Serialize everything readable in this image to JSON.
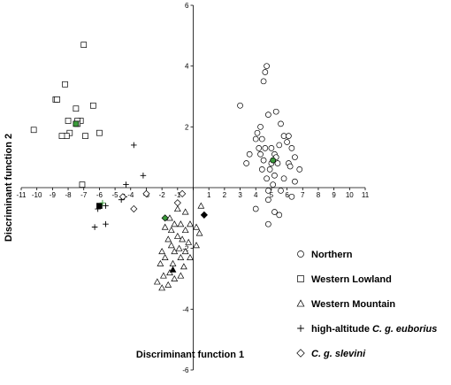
{
  "chart_data": {
    "type": "scatter",
    "xlabel": "Discriminant function 1",
    "ylabel": "Discriminant function 2",
    "xlim": [
      -11,
      11
    ],
    "ylim": [
      -6,
      6
    ],
    "x_ticks": [
      -11,
      -10,
      -9,
      -8,
      -7,
      -6,
      -5,
      -4,
      -3,
      -2,
      -1,
      0,
      1,
      2,
      3,
      4,
      5,
      6,
      7,
      8,
      9,
      10,
      11
    ],
    "y_ticks": [
      -6,
      -4,
      -2,
      2,
      4,
      6
    ],
    "grid": false,
    "legend_position": "bottom-right",
    "legend": [
      {
        "marker": "circle",
        "parts": [
          {
            "text": "Northern",
            "italic": false
          }
        ]
      },
      {
        "marker": "square",
        "parts": [
          {
            "text": "Western Lowland",
            "italic": false
          }
        ]
      },
      {
        "marker": "triangle",
        "parts": [
          {
            "text": "Western Mountain",
            "italic": false
          }
        ]
      },
      {
        "marker": "plus",
        "parts": [
          {
            "text": "high-altitude ",
            "italic": false
          },
          {
            "text": "C. g. euborius",
            "italic": true
          }
        ]
      },
      {
        "marker": "diamond",
        "parts": [
          {
            "text": "C. g. slevini",
            "italic": true
          }
        ]
      }
    ],
    "colors": {
      "open_marker": "#ffffff",
      "stroke": "#000000",
      "centroid": "#3a9a3a",
      "filled": "#000000"
    },
    "series": [
      {
        "marker": "circle",
        "points": [
          [
            4.7,
            4.0
          ],
          [
            4.6,
            3.8
          ],
          [
            4.5,
            3.5
          ],
          [
            3.0,
            2.7
          ],
          [
            4.8,
            2.4
          ],
          [
            5.3,
            2.5
          ],
          [
            4.3,
            2.0
          ],
          [
            5.6,
            2.1
          ],
          [
            4.1,
            1.8
          ],
          [
            4.0,
            1.6
          ],
          [
            4.4,
            1.6
          ],
          [
            5.8,
            1.7
          ],
          [
            6.1,
            1.7
          ],
          [
            6.0,
            1.5
          ],
          [
            4.6,
            1.3
          ],
          [
            4.2,
            1.3
          ],
          [
            5.0,
            1.3
          ],
          [
            5.5,
            1.4
          ],
          [
            6.3,
            1.3
          ],
          [
            3.6,
            1.1
          ],
          [
            4.3,
            1.1
          ],
          [
            5.2,
            1.1
          ],
          [
            5.3,
            1.0
          ],
          [
            4.5,
            0.9
          ],
          [
            6.5,
            1.0
          ],
          [
            3.4,
            0.8
          ],
          [
            5.0,
            0.8
          ],
          [
            5.4,
            0.8
          ],
          [
            6.1,
            0.8
          ],
          [
            4.4,
            0.6
          ],
          [
            4.9,
            0.6
          ],
          [
            6.2,
            0.7
          ],
          [
            6.8,
            0.6
          ],
          [
            4.7,
            0.3
          ],
          [
            5.2,
            0.4
          ],
          [
            5.8,
            0.3
          ],
          [
            6.5,
            0.2
          ],
          [
            5.1,
            0.1
          ],
          [
            4.8,
            -0.1
          ],
          [
            5.6,
            -0.1
          ],
          [
            4.8,
            -0.4
          ],
          [
            6.3,
            -0.3
          ],
          [
            4.0,
            -0.7
          ],
          [
            5.2,
            -0.8
          ],
          [
            5.5,
            -0.9
          ],
          [
            4.8,
            -1.2
          ]
        ]
      },
      {
        "marker": "square",
        "points": [
          [
            -7.0,
            4.7
          ],
          [
            -8.2,
            3.4
          ],
          [
            -8.8,
            2.9
          ],
          [
            -8.7,
            2.9
          ],
          [
            -6.4,
            2.7
          ],
          [
            -7.5,
            2.6
          ],
          [
            -7.2,
            2.2
          ],
          [
            -8.0,
            2.2
          ],
          [
            -7.4,
            2.2
          ],
          [
            -7.4,
            2.1
          ],
          [
            -6.0,
            1.8
          ],
          [
            -10.2,
            1.9
          ],
          [
            -7.9,
            1.8
          ],
          [
            -8.1,
            1.7
          ],
          [
            -6.9,
            1.7
          ],
          [
            -8.4,
            1.7
          ],
          [
            -7.1,
            0.1
          ]
        ]
      },
      {
        "marker": "triangle",
        "points": [
          [
            -1.0,
            -0.7
          ],
          [
            -0.5,
            -0.8
          ],
          [
            0.5,
            -0.6
          ],
          [
            -1.5,
            -1.0
          ],
          [
            -1.2,
            -1.2
          ],
          [
            -0.8,
            -1.2
          ],
          [
            -0.2,
            -1.2
          ],
          [
            0.2,
            -1.3
          ],
          [
            -1.8,
            -1.3
          ],
          [
            -1.4,
            -1.4
          ],
          [
            -0.5,
            -1.4
          ],
          [
            0.4,
            -1.5
          ],
          [
            -1.0,
            -1.6
          ],
          [
            -0.7,
            -1.7
          ],
          [
            -1.6,
            -1.7
          ],
          [
            -0.3,
            -1.8
          ],
          [
            0.2,
            -1.9
          ],
          [
            -1.4,
            -1.9
          ],
          [
            -0.9,
            -2.0
          ],
          [
            -2.0,
            -2.1
          ],
          [
            -1.2,
            -2.1
          ],
          [
            -0.5,
            -2.1
          ],
          [
            -1.8,
            -2.3
          ],
          [
            -0.8,
            -2.3
          ],
          [
            -0.2,
            -2.3
          ],
          [
            -2.1,
            -2.5
          ],
          [
            -1.3,
            -2.5
          ],
          [
            -0.6,
            -2.6
          ],
          [
            -1.5,
            -2.8
          ],
          [
            -1.9,
            -2.9
          ],
          [
            -0.8,
            -2.9
          ],
          [
            -1.2,
            -3.0
          ],
          [
            -2.3,
            -3.1
          ],
          [
            -1.6,
            -3.2
          ],
          [
            -2.0,
            -3.3
          ]
        ]
      },
      {
        "marker": "plus",
        "points": [
          [
            -3.8,
            1.4
          ],
          [
            -3.2,
            0.4
          ],
          [
            -4.3,
            0.1
          ],
          [
            -4.4,
            -0.3
          ],
          [
            -4.6,
            -0.4
          ],
          [
            -5.6,
            -0.6
          ],
          [
            -6.1,
            -0.7
          ],
          [
            -5.6,
            -1.2
          ],
          [
            -6.3,
            -1.3
          ]
        ]
      },
      {
        "marker": "diamond",
        "points": [
          [
            -3.0,
            -0.2
          ],
          [
            -4.5,
            -0.3
          ],
          [
            -0.7,
            -0.2
          ],
          [
            -3.8,
            -0.7
          ],
          [
            -1.0,
            -0.5
          ]
        ]
      },
      {
        "marker": "square",
        "filled": true,
        "points": [
          [
            -6.0,
            -0.6
          ]
        ]
      },
      {
        "marker": "triangle",
        "filled": true,
        "points": [
          [
            -1.3,
            -2.7
          ]
        ]
      },
      {
        "marker": "diamond",
        "filled": true,
        "points": [
          [
            0.7,
            -0.9
          ]
        ]
      },
      {
        "marker": "circle",
        "centroid": true,
        "points": [
          [
            5.1,
            0.9
          ]
        ]
      },
      {
        "marker": "square",
        "centroid": true,
        "points": [
          [
            -7.5,
            2.1
          ]
        ]
      },
      {
        "marker": "plus",
        "centroid": true,
        "points": [
          [
            -5.8,
            -0.5
          ]
        ]
      },
      {
        "marker": "diamond",
        "centroid": true,
        "points": [
          [
            -1.8,
            -1.0
          ]
        ]
      }
    ]
  }
}
